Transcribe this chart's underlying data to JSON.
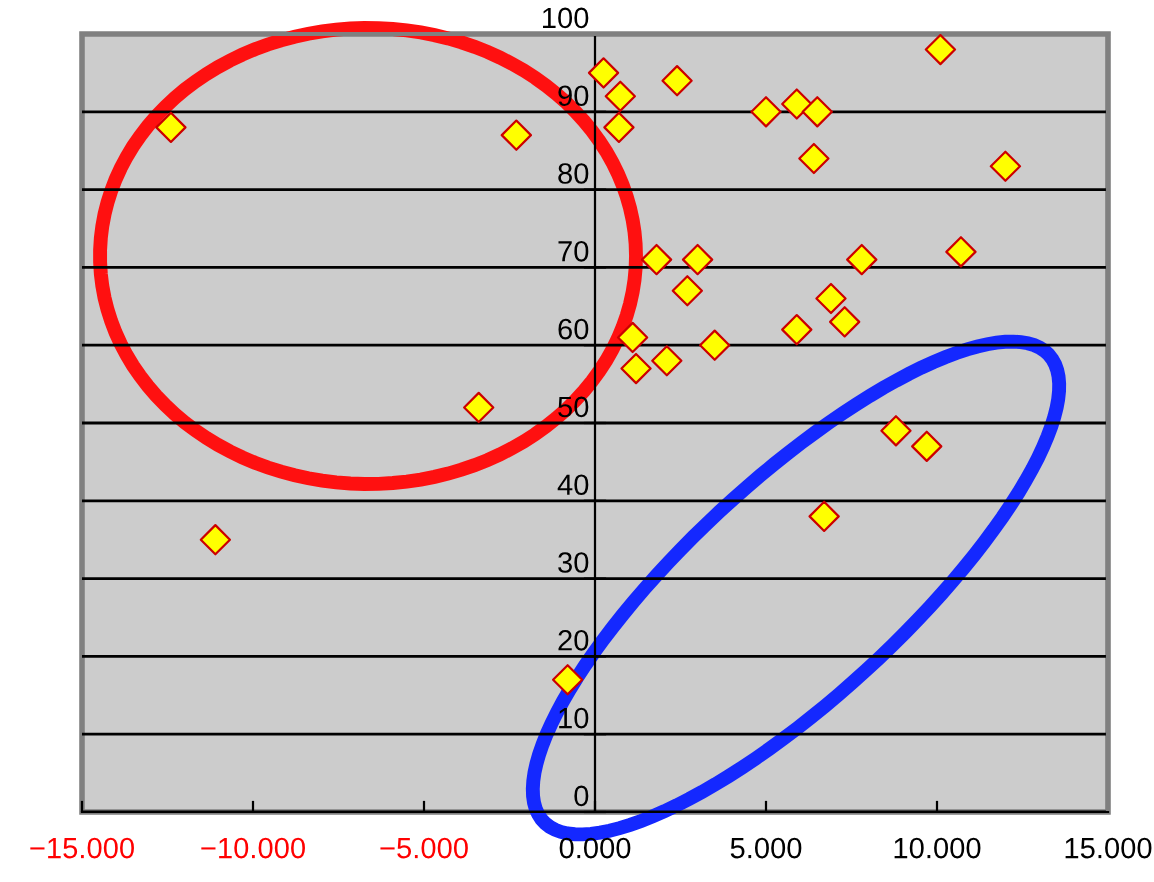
{
  "chart_data": {
    "type": "scatter",
    "marker": "diamond",
    "grid": "y",
    "legend": false,
    "xlim": [
      -15,
      15
    ],
    "ylim": [
      0,
      100
    ],
    "xticks": [
      {
        "value": -15,
        "label": "−15.000"
      },
      {
        "value": -10,
        "label": "−10.000"
      },
      {
        "value": -5,
        "label": "−5.000"
      },
      {
        "value": 0,
        "label": "0.000"
      },
      {
        "value": 5,
        "label": "5.000"
      },
      {
        "value": 10,
        "label": "10.000"
      },
      {
        "value": 15,
        "label": "15.000"
      }
    ],
    "yticks": [
      0,
      10,
      20,
      30,
      40,
      50,
      60,
      70,
      80,
      90,
      100
    ],
    "series": [
      {
        "color": "#ffff00",
        "x": [
          -12.4,
          -2.3,
          -3.4,
          -11.1,
          0.25,
          0.74,
          0.7,
          2.4,
          5.0,
          5.9,
          6.5,
          6.4,
          10.1,
          12.0,
          1.8,
          3.0,
          2.7,
          7.8,
          10.7,
          6.9,
          7.3,
          5.9,
          1.1,
          3.5,
          1.2,
          2.1,
          8.8,
          9.7,
          6.7,
          -0.8
        ],
        "values": [
          88,
          87,
          52,
          35,
          95,
          92,
          88,
          94,
          90,
          91,
          90,
          84,
          98,
          83,
          71,
          71,
          67,
          71,
          72,
          66,
          63,
          62,
          61,
          60,
          57,
          58,
          49,
          47,
          38,
          17
        ]
      }
    ]
  }
}
